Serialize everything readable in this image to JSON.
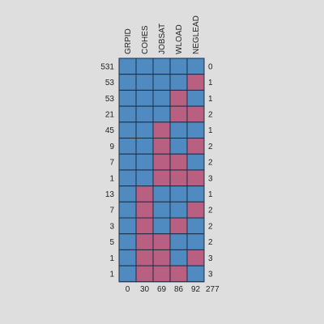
{
  "colors": {
    "observed": "#4f8ac0",
    "missing": "#b95f82",
    "background": "#dedede"
  },
  "chart_data": {
    "type": "heatmap",
    "title": "",
    "variables": [
      "GRPID",
      "COHES",
      "JOBSAT",
      "WLOAD",
      "NEGLEAD"
    ],
    "missing_counts_per_variable": [
      "0",
      "30",
      "69",
      "86",
      "92"
    ],
    "total_missing": "277",
    "patterns": [
      {
        "count": "531",
        "n_missing": "0",
        "cells": [
          1,
          1,
          1,
          1,
          1
        ]
      },
      {
        "count": "53",
        "n_missing": "1",
        "cells": [
          1,
          1,
          1,
          1,
          0
        ]
      },
      {
        "count": "53",
        "n_missing": "1",
        "cells": [
          1,
          1,
          1,
          0,
          1
        ]
      },
      {
        "count": "21",
        "n_missing": "2",
        "cells": [
          1,
          1,
          1,
          0,
          0
        ]
      },
      {
        "count": "45",
        "n_missing": "1",
        "cells": [
          1,
          1,
          0,
          1,
          1
        ]
      },
      {
        "count": "9",
        "n_missing": "2",
        "cells": [
          1,
          1,
          0,
          1,
          0
        ]
      },
      {
        "count": "7",
        "n_missing": "2",
        "cells": [
          1,
          1,
          0,
          0,
          1
        ]
      },
      {
        "count": "1",
        "n_missing": "3",
        "cells": [
          1,
          1,
          0,
          0,
          0
        ]
      },
      {
        "count": "13",
        "n_missing": "1",
        "cells": [
          1,
          0,
          1,
          1,
          1
        ]
      },
      {
        "count": "7",
        "n_missing": "2",
        "cells": [
          1,
          0,
          1,
          1,
          0
        ]
      },
      {
        "count": "3",
        "n_missing": "2",
        "cells": [
          1,
          0,
          1,
          0,
          1
        ]
      },
      {
        "count": "5",
        "n_missing": "2",
        "cells": [
          1,
          0,
          0,
          1,
          1
        ]
      },
      {
        "count": "1",
        "n_missing": "3",
        "cells": [
          1,
          0,
          0,
          1,
          0
        ]
      },
      {
        "count": "1",
        "n_missing": "3",
        "cells": [
          1,
          0,
          0,
          0,
          1
        ]
      }
    ]
  }
}
